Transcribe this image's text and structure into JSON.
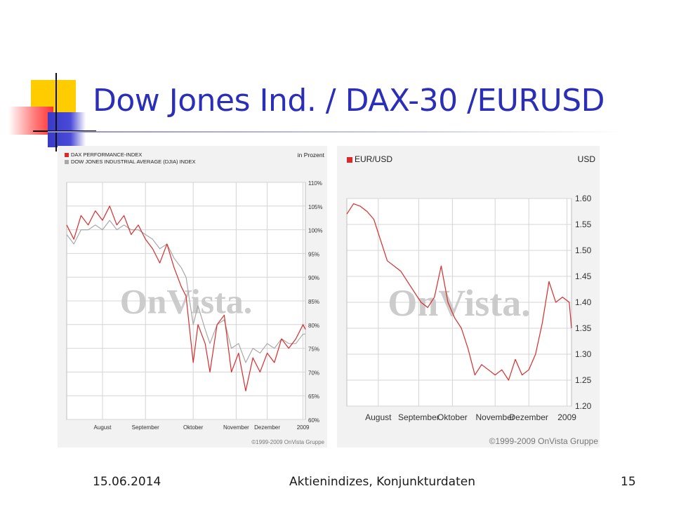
{
  "slide": {
    "title": "Dow Jones Ind. / DAX-30 /EURUSD",
    "footer_date": "15.06.2014",
    "footer_center": "Aktienindizes, Konjunkturdaten",
    "page_number": "15",
    "title_color": "#2b2fb7"
  },
  "chart_data": [
    {
      "type": "line",
      "unit_label": "in Prozent",
      "watermark": "OnVista.",
      "copyright": "©1999-2009 OnVista Gruppe",
      "ylim": [
        60,
        110
      ],
      "y_ticks": [
        110,
        105,
        100,
        95,
        90,
        85,
        80,
        75,
        70,
        65,
        60
      ],
      "y_tick_suffix": "%",
      "x_ticks": [
        "August",
        "September",
        "Oktober",
        "November",
        "Dezember",
        "2009"
      ],
      "x_tick_pos": [
        0.15,
        0.33,
        0.53,
        0.71,
        0.84,
        0.99
      ],
      "series": [
        {
          "name": "DAX PERFORMANCE-INDEX",
          "color": "#d92b2b",
          "x": [
            0,
            0.03,
            0.06,
            0.09,
            0.12,
            0.15,
            0.18,
            0.21,
            0.24,
            0.27,
            0.3,
            0.33,
            0.36,
            0.39,
            0.42,
            0.45,
            0.48,
            0.5,
            0.53,
            0.55,
            0.58,
            0.6,
            0.63,
            0.66,
            0.69,
            0.72,
            0.75,
            0.78,
            0.81,
            0.84,
            0.87,
            0.9,
            0.93,
            0.96,
            0.99,
            1.0
          ],
          "y": [
            101,
            98,
            103,
            101,
            104,
            102,
            105,
            101,
            103,
            99,
            101,
            98,
            96,
            93,
            97,
            92,
            88,
            86,
            72,
            80,
            76,
            70,
            80,
            82,
            70,
            74,
            66,
            73,
            70,
            74,
            72,
            77,
            75,
            77,
            80,
            79
          ]
        },
        {
          "name": "DOW JONES INDUSTRIAL AVERAGE (DJIA) INDEX",
          "color": "#a8a8a8",
          "x": [
            0,
            0.03,
            0.06,
            0.09,
            0.12,
            0.15,
            0.18,
            0.21,
            0.24,
            0.27,
            0.3,
            0.33,
            0.36,
            0.39,
            0.42,
            0.45,
            0.48,
            0.5,
            0.53,
            0.55,
            0.58,
            0.6,
            0.63,
            0.66,
            0.69,
            0.72,
            0.75,
            0.78,
            0.81,
            0.84,
            0.87,
            0.9,
            0.93,
            0.96,
            0.99,
            1.0
          ],
          "y": [
            99,
            97,
            100,
            100,
            101,
            100,
            102,
            100,
            101,
            100,
            100,
            99,
            98,
            96,
            97,
            94,
            92,
            90,
            80,
            84,
            79,
            76,
            80,
            81,
            75,
            76,
            72,
            75,
            74,
            76,
            75,
            77,
            76,
            76,
            78,
            78
          ]
        }
      ],
      "grid": true,
      "legend": "top-left"
    },
    {
      "type": "line",
      "legend": "top-left",
      "unit_label": "USD",
      "watermark": "OnVista.",
      "copyright": "©1999-2009 OnVista Gruppe",
      "ylim": [
        1.2,
        1.6
      ],
      "y_ticks": [
        "1.60",
        "1.55",
        "1.50",
        "1.45",
        "1.40",
        "1.35",
        "1.30",
        "1.25",
        "1.20"
      ],
      "x_ticks": [
        "August",
        "September",
        "Oktober",
        "November",
        "Dezember",
        "2009"
      ],
      "x_tick_pos": [
        0.14,
        0.32,
        0.47,
        0.66,
        0.81,
        0.98
      ],
      "series": [
        {
          "name": "EUR/USD",
          "color": "#d92b2b",
          "x": [
            0,
            0.03,
            0.06,
            0.09,
            0.12,
            0.15,
            0.18,
            0.21,
            0.24,
            0.27,
            0.3,
            0.33,
            0.36,
            0.39,
            0.42,
            0.45,
            0.48,
            0.51,
            0.54,
            0.57,
            0.6,
            0.63,
            0.66,
            0.69,
            0.72,
            0.75,
            0.78,
            0.81,
            0.84,
            0.87,
            0.9,
            0.93,
            0.96,
            0.99,
            1.0
          ],
          "y": [
            1.57,
            1.59,
            1.585,
            1.575,
            1.56,
            1.52,
            1.48,
            1.47,
            1.46,
            1.44,
            1.42,
            1.4,
            1.39,
            1.41,
            1.47,
            1.4,
            1.37,
            1.35,
            1.31,
            1.26,
            1.28,
            1.27,
            1.26,
            1.27,
            1.25,
            1.29,
            1.26,
            1.27,
            1.3,
            1.36,
            1.44,
            1.4,
            1.41,
            1.4,
            1.35
          ]
        }
      ],
      "grid": true
    }
  ]
}
